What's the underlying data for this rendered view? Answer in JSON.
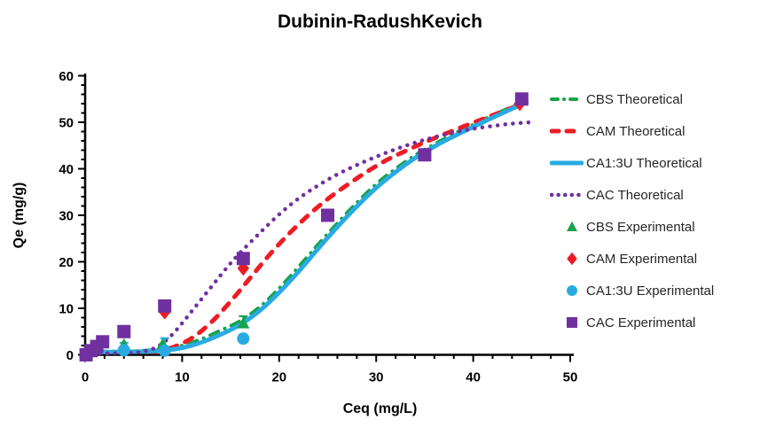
{
  "chart_data": {
    "type": "line",
    "title": "Dubinin-RadushKevich",
    "xlabel": "Ceq (mg/L)",
    "ylabel": "Qe (mg/g)",
    "xlim": [
      0,
      50
    ],
    "ylim": [
      0,
      60
    ],
    "x_major_tick": 10,
    "x_minor_tick": 2,
    "y_major_tick": 10,
    "y_minor_tick": 2,
    "grid": false,
    "legend_position": "right",
    "axis_color": "#000000",
    "legend_text_color": "#262626",
    "series": [
      {
        "name": "CBS Theoretical",
        "kind": "line",
        "style": "dash-dot",
        "color": "#17A24B",
        "points": [
          [
            1.2,
            0.7
          ],
          [
            4,
            0.8
          ],
          [
            6,
            0.9
          ],
          [
            8,
            1.2
          ],
          [
            10,
            2.0
          ],
          [
            12,
            3.4
          ],
          [
            14,
            5.3
          ],
          [
            16,
            7.3
          ],
          [
            18,
            10.3
          ],
          [
            20,
            14.3
          ],
          [
            22,
            18.9
          ],
          [
            24,
            23.7
          ],
          [
            26,
            28.3
          ],
          [
            28,
            32.7
          ],
          [
            30,
            36.7
          ],
          [
            32,
            40.0
          ],
          [
            34,
            42.9
          ],
          [
            36,
            45.3
          ],
          [
            38,
            47.5
          ],
          [
            40,
            49.5
          ],
          [
            42,
            51.5
          ],
          [
            44,
            53.3
          ],
          [
            45.3,
            54.3
          ]
        ]
      },
      {
        "name": "CAM Theoretical",
        "kind": "line",
        "style": "dashed",
        "color": "#ED1C24",
        "points": [
          [
            7,
            0.6
          ],
          [
            9,
            1.6
          ],
          [
            11,
            3.6
          ],
          [
            13,
            7.0
          ],
          [
            15,
            11.5
          ],
          [
            17,
            16.5
          ],
          [
            19,
            21.5
          ],
          [
            21,
            26.0
          ],
          [
            23,
            30.0
          ],
          [
            25,
            33.5
          ],
          [
            27,
            36.5
          ],
          [
            29,
            39.3
          ],
          [
            31,
            41.8
          ],
          [
            33,
            43.8
          ],
          [
            35,
            45.7
          ],
          [
            37,
            47.4
          ],
          [
            39,
            49.1
          ],
          [
            41,
            50.7
          ],
          [
            43,
            52.3
          ],
          [
            45,
            53.9
          ]
        ]
      },
      {
        "name": "CA1:3U Theoretical",
        "kind": "line",
        "style": "solid",
        "color": "#29ABE2",
        "points": [
          [
            1.4,
            0.6
          ],
          [
            4,
            0.65
          ],
          [
            6,
            0.7
          ],
          [
            8,
            0.95
          ],
          [
            10,
            1.5
          ],
          [
            12,
            2.7
          ],
          [
            14,
            4.4
          ],
          [
            16,
            6.5
          ],
          [
            18,
            9.5
          ],
          [
            20,
            13.4
          ],
          [
            22,
            17.9
          ],
          [
            24,
            22.8
          ],
          [
            26,
            27.5
          ],
          [
            28,
            31.9
          ],
          [
            30,
            35.9
          ],
          [
            32,
            39.3
          ],
          [
            34,
            42.3
          ],
          [
            36,
            44.8
          ],
          [
            38,
            47.0
          ],
          [
            40,
            49.0
          ],
          [
            42,
            51.0
          ],
          [
            44,
            52.9
          ],
          [
            45.5,
            54.3
          ]
        ]
      },
      {
        "name": "CAC Theoretical",
        "kind": "line",
        "style": "dotted",
        "color": "#7030A0",
        "points": [
          [
            1.5,
            0.3
          ],
          [
            3,
            0.35
          ],
          [
            5,
            0.5
          ],
          [
            6,
            0.7
          ],
          [
            7,
            1.3
          ],
          [
            8,
            2.5
          ],
          [
            9,
            4.4
          ],
          [
            10,
            6.8
          ],
          [
            11,
            9.4
          ],
          [
            12,
            12.0
          ],
          [
            13,
            14.6
          ],
          [
            14,
            17.2
          ],
          [
            15,
            19.7
          ],
          [
            16,
            22.0
          ],
          [
            18,
            26.2
          ],
          [
            20,
            30.2
          ],
          [
            22,
            33.6
          ],
          [
            24,
            36.4
          ],
          [
            26,
            38.8
          ],
          [
            28,
            40.8
          ],
          [
            30,
            42.6
          ],
          [
            32,
            44.2
          ],
          [
            34,
            45.6
          ],
          [
            36,
            46.8
          ],
          [
            38,
            47.8
          ],
          [
            40,
            48.6
          ],
          [
            42,
            49.2
          ],
          [
            44,
            49.7
          ],
          [
            46,
            50.0
          ]
        ]
      },
      {
        "name": "CBS Experimental",
        "kind": "scatter",
        "marker": "triangle",
        "color": "#17A24B",
        "points": [
          [
            4,
            2.2
          ],
          [
            8,
            2.3
          ],
          [
            16.3,
            6.8
          ]
        ],
        "error_bars": [
          {
            "x": 16.3,
            "y": 6.8,
            "plus": 1.5
          }
        ]
      },
      {
        "name": "CAM Experimental",
        "kind": "scatter",
        "marker": "diamond",
        "color": "#ED1C24",
        "points": [
          [
            8.2,
            9.2
          ],
          [
            16.3,
            18.6
          ],
          [
            44.8,
            54.0
          ]
        ]
      },
      {
        "name": "CA1:3U Experimental",
        "kind": "scatter",
        "marker": "circle",
        "color": "#29ABE2",
        "points": [
          [
            4,
            1.0
          ],
          [
            8.2,
            0.9
          ],
          [
            16.3,
            3.5
          ]
        ],
        "error_bars": [
          {
            "x": 4,
            "y": 1.0,
            "plus": 1.6
          },
          {
            "x": 8.2,
            "y": 0.9,
            "plus": 2.7
          }
        ]
      },
      {
        "name": "CAC Experimental",
        "kind": "scatter",
        "marker": "square",
        "color": "#7030A0",
        "points": [
          [
            0.1,
            0.0
          ],
          [
            0.6,
            0.9
          ],
          [
            1.2,
            1.8
          ],
          [
            1.8,
            2.8
          ],
          [
            4,
            5.0
          ],
          [
            8.2,
            10.5
          ],
          [
            16.3,
            20.7
          ],
          [
            25,
            30.0
          ],
          [
            35,
            43.0
          ],
          [
            45,
            55.0
          ]
        ]
      }
    ]
  }
}
